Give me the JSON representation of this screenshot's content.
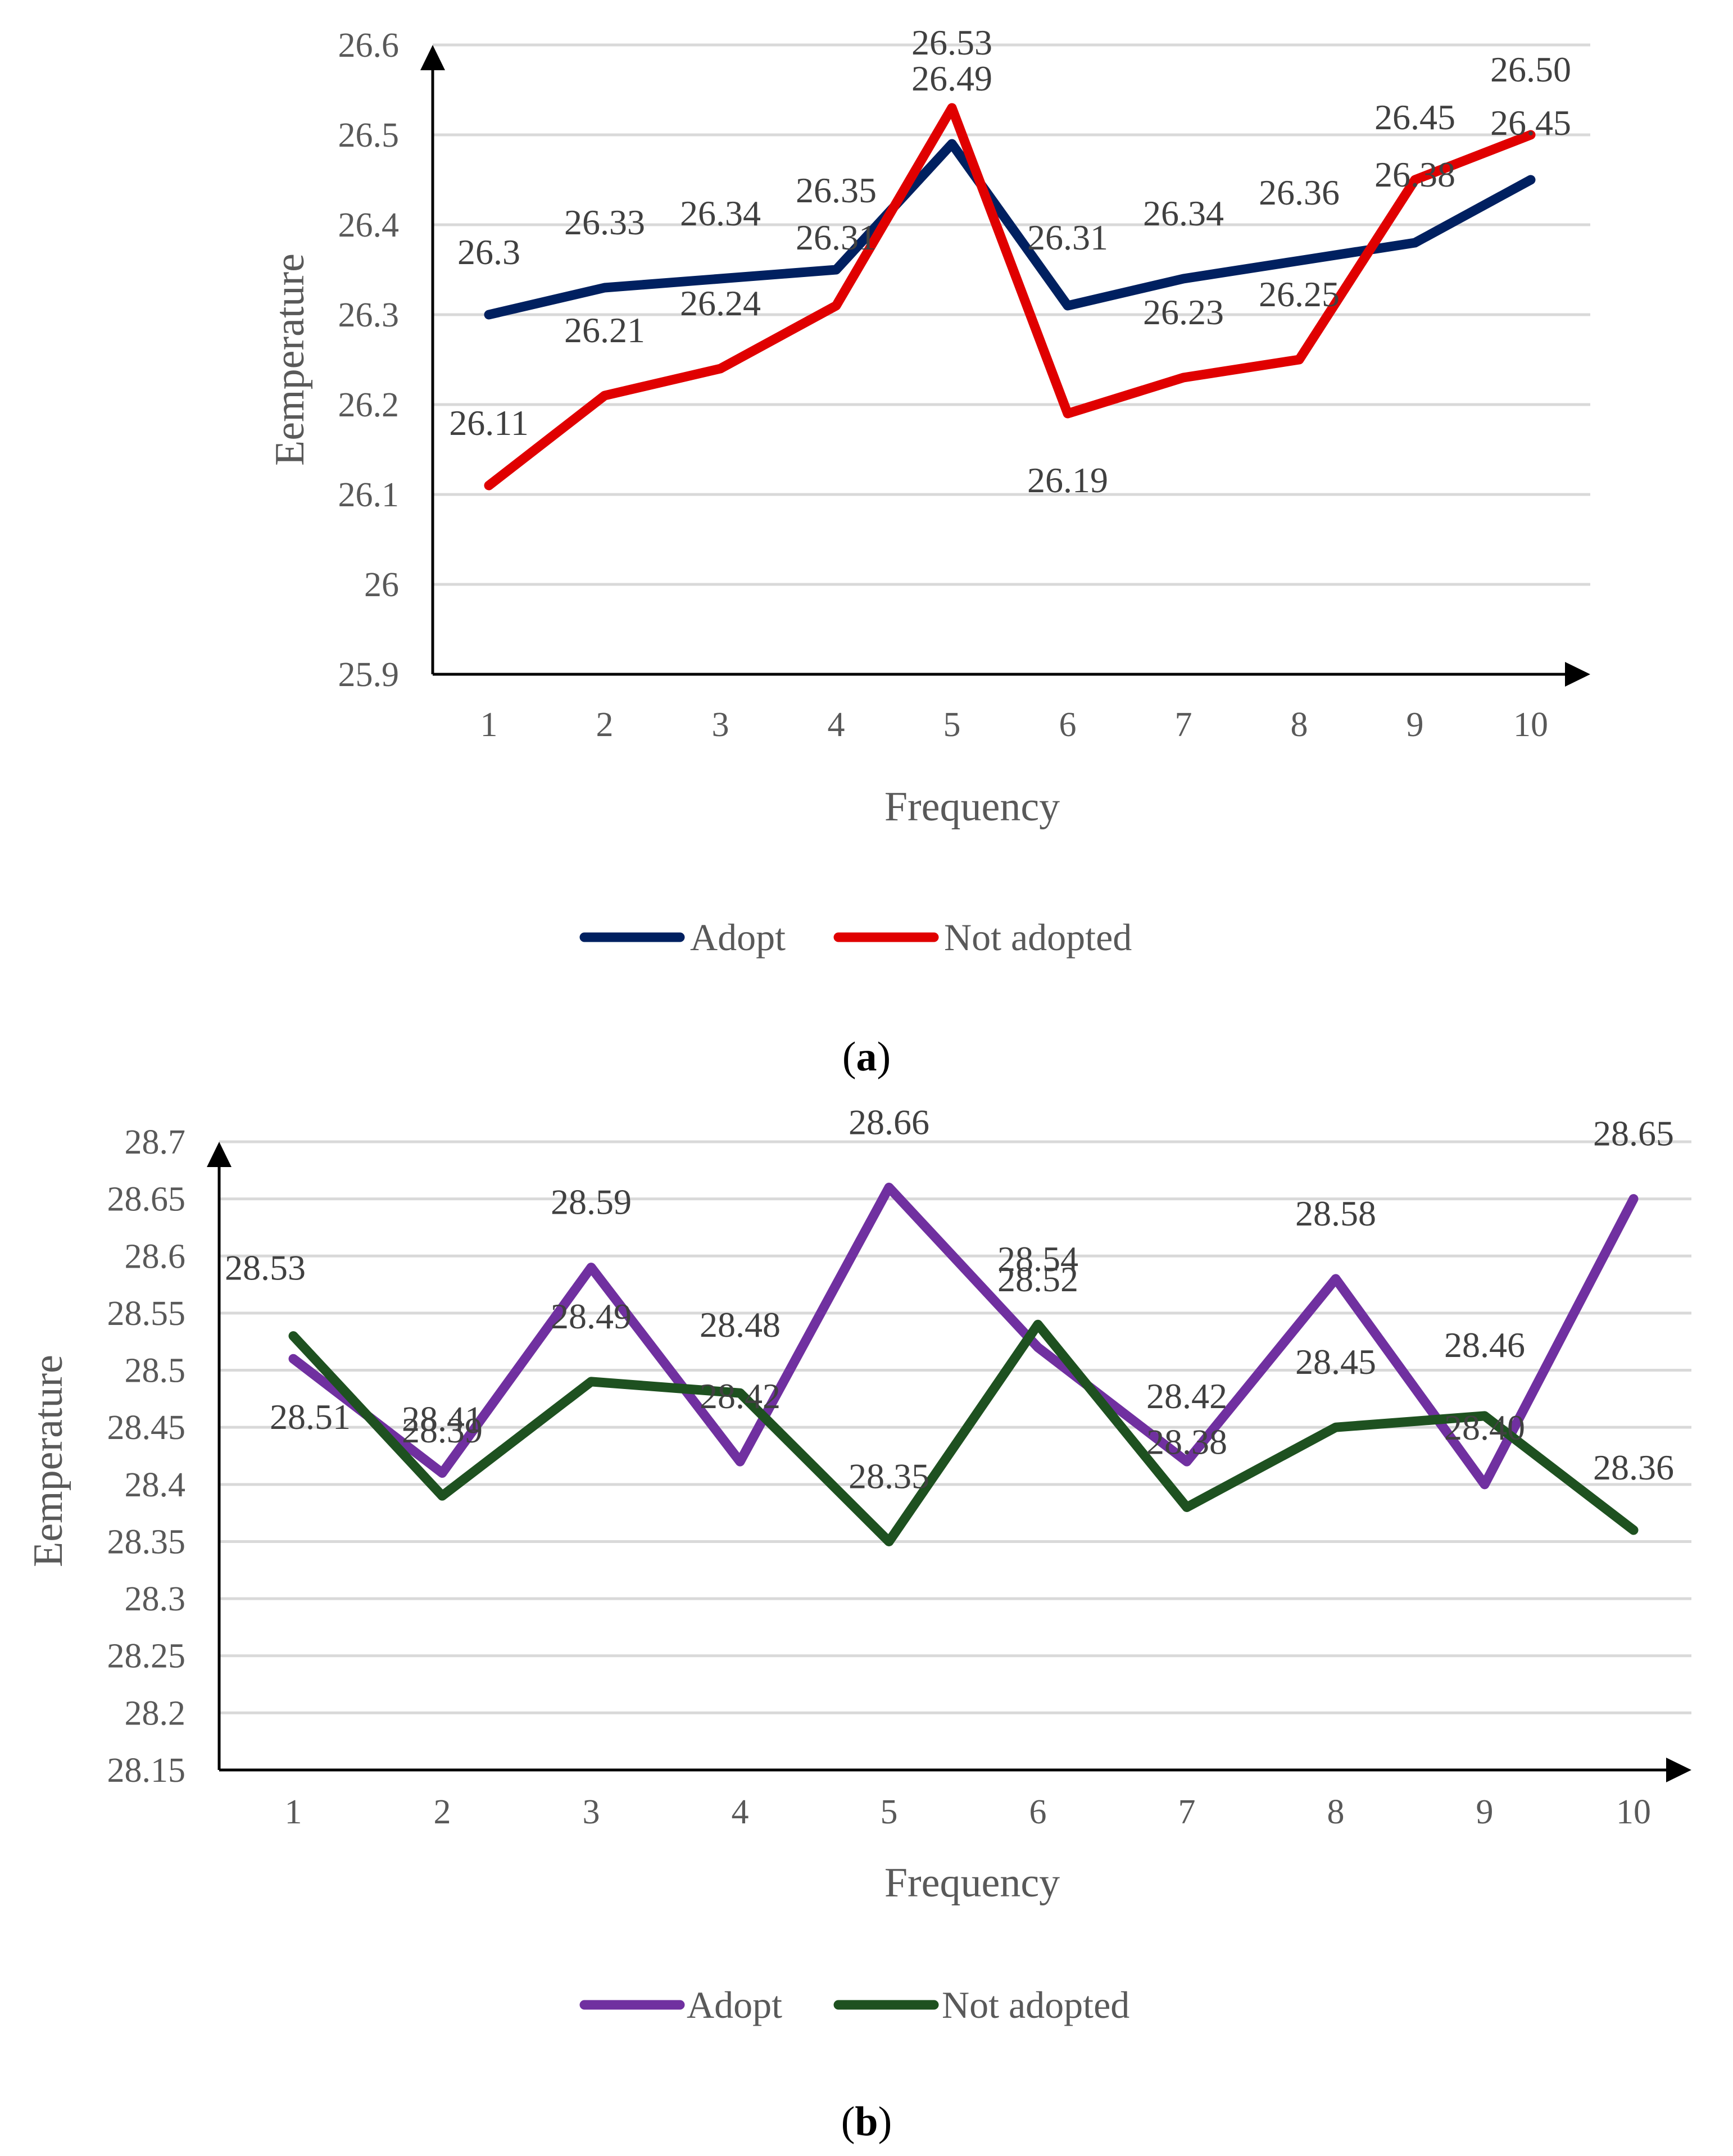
{
  "chart_data": [
    {
      "type": "line",
      "caption_letter": "a",
      "x": [
        1,
        2,
        3,
        4,
        5,
        6,
        7,
        8,
        9,
        10
      ],
      "x_tick_labels": [
        "1",
        "2",
        "3",
        "4",
        "5",
        "6",
        "7",
        "8",
        "9",
        "10"
      ],
      "y_ticks": [
        25.9,
        26,
        26.1,
        26.2,
        26.3,
        26.4,
        26.5,
        26.6
      ],
      "y_tick_labels": [
        "25.9",
        "26",
        "26.1",
        "26.2",
        "26.3",
        "26.4",
        "26.5",
        "26.6"
      ],
      "ylim": [
        25.9,
        26.6
      ],
      "xlabel": "Frequency",
      "ylabel": "Eemperature",
      "legend_position": "bottom",
      "series": [
        {
          "name": "Adopt",
          "color": "#002060",
          "values": [
            26.3,
            26.33,
            26.34,
            26.35,
            26.49,
            26.31,
            26.34,
            26.36,
            26.38,
            26.45
          ],
          "labels": [
            "26.3",
            "26.33",
            "26.34",
            "26.35",
            "26.49",
            "26.31",
            "26.34",
            "26.36",
            "26.38",
            "26.45"
          ]
        },
        {
          "name": "Not adopted",
          "color": "#e00000",
          "values": [
            26.11,
            26.21,
            26.24,
            26.31,
            26.53,
            26.19,
            26.23,
            26.25,
            26.45,
            26.5
          ],
          "labels": [
            "26.11",
            "26.21",
            "26.24",
            "26.31",
            "26.53",
            "26.19",
            "26.23",
            "26.25",
            "26.45",
            "26.50"
          ]
        }
      ]
    },
    {
      "type": "line",
      "caption_letter": "b",
      "x": [
        1,
        2,
        3,
        4,
        5,
        6,
        7,
        8,
        9,
        10
      ],
      "x_tick_labels": [
        "1",
        "2",
        "3",
        "4",
        "5",
        "6",
        "7",
        "8",
        "9",
        "10"
      ],
      "y_ticks": [
        28.15,
        28.2,
        28.25,
        28.3,
        28.35,
        28.4,
        28.45,
        28.5,
        28.55,
        28.6,
        28.65,
        28.7
      ],
      "y_tick_labels": [
        "28.15",
        "28.2",
        "28.25",
        "28.3",
        "28.35",
        "28.4",
        "28.45",
        "28.5",
        "28.55",
        "28.6",
        "28.65",
        "28.7"
      ],
      "ylim": [
        28.15,
        28.7
      ],
      "xlabel": "Frequency",
      "ylabel": "Eemperature",
      "legend_position": "bottom",
      "series": [
        {
          "name": "Adopt",
          "color": "#7030a0",
          "values": [
            28.51,
            28.41,
            28.59,
            28.42,
            28.66,
            28.52,
            28.42,
            28.58,
            28.4,
            28.65
          ],
          "labels": [
            "28.51",
            "28.41",
            "28.59",
            "28.42",
            "28.66",
            "28.52",
            "28.42",
            "28.58",
            "28.40",
            "28.65"
          ]
        },
        {
          "name": "Not adopted",
          "color": "#1e5120",
          "values": [
            28.53,
            28.39,
            28.49,
            28.48,
            28.35,
            28.54,
            28.38,
            28.45,
            28.46,
            28.36
          ],
          "labels": [
            "28.53",
            "28.39",
            "28.49",
            "28.48",
            "28.35",
            "28.54",
            "28.38",
            "28.45",
            "28.46",
            "28.36"
          ]
        }
      ]
    }
  ]
}
